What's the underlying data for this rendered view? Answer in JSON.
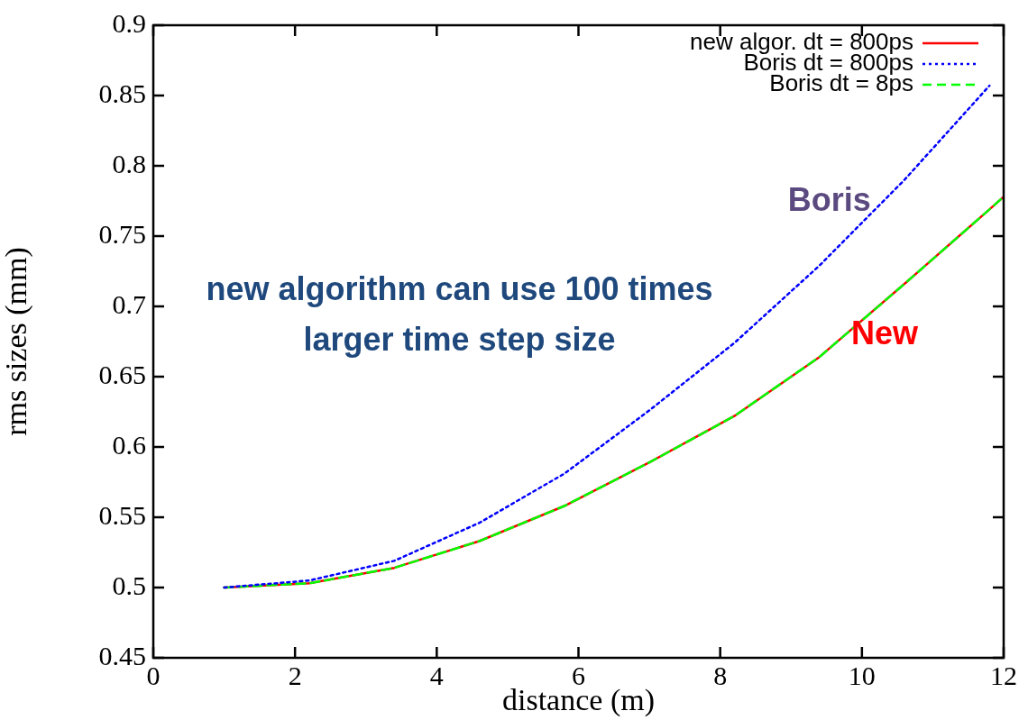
{
  "chart_data": {
    "type": "line",
    "xlabel": "distance (m)",
    "ylabel": "rms sizes (mm)",
    "xlim": [
      0,
      12
    ],
    "xticks": [
      0,
      2,
      4,
      6,
      8,
      10,
      12
    ],
    "ylim": [
      0.45,
      0.9
    ],
    "yticks": [
      0.45,
      0.5,
      0.55,
      0.6,
      0.65,
      0.7,
      0.75,
      0.8,
      0.85,
      0.9
    ],
    "grid": false,
    "legend": "top right",
    "marker": "none",
    "series": [
      {
        "name": "new algor. dt = 800ps",
        "color": "#ff0000",
        "line_style": "solid",
        "x": [
          1,
          2.2,
          3.4,
          4.6,
          5.8,
          7,
          8.2,
          9.4,
          10.6,
          11.8,
          12
        ],
        "values": [
          0.5,
          0.503,
          0.514,
          0.533,
          0.558,
          0.589,
          0.622,
          0.664,
          0.716,
          0.769,
          0.778
        ]
      },
      {
        "name": "Boris dt = 800ps",
        "color": "#0000ff",
        "line_style": "dotted",
        "x": [
          1,
          2.2,
          3.4,
          4.6,
          5.8,
          7,
          8.2,
          9.4,
          10.6,
          11.8
        ],
        "values": [
          0.5,
          0.505,
          0.519,
          0.546,
          0.581,
          0.626,
          0.674,
          0.729,
          0.79,
          0.857
        ]
      },
      {
        "name": "Boris dt = 8ps",
        "color": "#00ff00",
        "line_style": "dashed",
        "x": [
          1,
          2.2,
          3.4,
          4.6,
          5.8,
          7,
          8.2,
          9.4,
          10.6,
          11.8,
          12
        ],
        "values": [
          0.5,
          0.503,
          0.514,
          0.533,
          0.558,
          0.589,
          0.622,
          0.664,
          0.716,
          0.769,
          0.778
        ]
      }
    ],
    "annotations": [
      "Boris",
      "New",
      "new algorithm can use 100 times\nlarger time step size"
    ]
  }
}
